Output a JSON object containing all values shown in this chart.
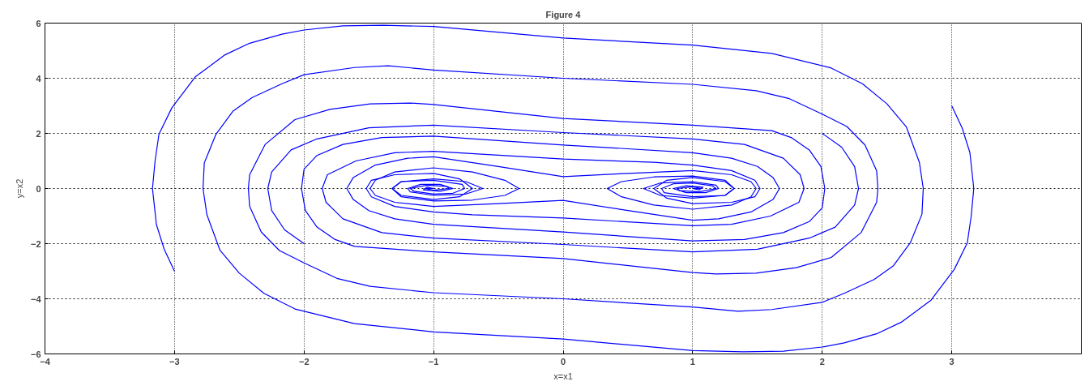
{
  "chart_data": {
    "type": "line",
    "title": "Figure 4",
    "xlabel": "x=x1",
    "ylabel": "y=x2",
    "xlim": [
      -4,
      4
    ],
    "ylim": [
      -6,
      6
    ],
    "xticks": [
      -4,
      -3,
      -2,
      -1,
      0,
      1,
      2,
      3,
      {
        "value": 4,
        "label": null
      }
    ],
    "yticks": [
      -6,
      -4,
      -2,
      0,
      2,
      4,
      6
    ],
    "grid": true,
    "line_style": "solid",
    "series": [
      {
        "color": "#0000ff",
        "x": [
          3.0,
          3.08,
          3.14,
          3.17,
          3.15,
          3.12,
          3.02,
          2.84,
          2.61,
          2.42,
          2.17,
          2.0,
          1.7,
          1.39,
          1.0,
          0,
          -1.0,
          -1.61,
          -2.07,
          -2.31,
          -2.5,
          -2.65,
          -2.75,
          -2.78,
          -2.77,
          -2.68,
          -2.55,
          -2.4,
          -2.17,
          -2.0,
          -1.61,
          -1.35,
          -1.0,
          0,
          1.0,
          1.49,
          1.74,
          2.0,
          2.19,
          2.33,
          2.42,
          2.43,
          2.42,
          2.3,
          2.07,
          1.8,
          1.49,
          1.18,
          1.0,
          0,
          -1.0,
          -1.61,
          -1.76,
          -1.9,
          -1.99,
          -2.02,
          -2.0,
          -1.9,
          -1.7,
          -1.4,
          -1.0,
          0,
          1.0,
          1.3,
          1.5,
          1.62,
          1.67,
          1.62,
          1.45,
          1.2,
          1.0,
          0.5,
          0,
          -0.5,
          -1.0,
          -1.3,
          -1.45,
          -1.49,
          -1.45,
          -1.3,
          -1.0,
          -0.7,
          -0.45,
          -0.34,
          -0.45,
          -0.7,
          -1.0,
          -1.25,
          -1.32,
          -1.25,
          -1.0,
          -0.75,
          -0.62,
          -0.75,
          -1.0,
          -1.18,
          -1.2,
          -1.1,
          -0.95,
          -0.85,
          -0.95,
          -1.08,
          -1.05,
          -1.0
        ],
        "values": [
          3.0,
          2.2,
          1.3,
          0,
          -1.0,
          -1.97,
          -2.93,
          -4.05,
          -4.85,
          -5.27,
          -5.6,
          -5.75,
          -5.9,
          -5.92,
          -5.88,
          -5.46,
          -5.2,
          -4.9,
          -4.37,
          -3.8,
          -3.07,
          -2.23,
          -0.95,
          0,
          0.93,
          1.97,
          2.8,
          3.3,
          3.8,
          4.13,
          4.39,
          4.45,
          4.3,
          4.0,
          3.78,
          3.55,
          3.27,
          2.7,
          2.25,
          1.58,
          0.65,
          0,
          -0.5,
          -1.6,
          -2.5,
          -2.87,
          -3.07,
          -3.1,
          -3.05,
          -2.54,
          -2.3,
          -2.1,
          -1.85,
          -1.4,
          -0.8,
          0,
          0.7,
          1.2,
          1.6,
          1.85,
          1.9,
          1.58,
          1.3,
          1.1,
          0.8,
          0.4,
          0,
          -0.4,
          -0.85,
          -1.1,
          -1.15,
          -0.8,
          -0.43,
          -0.55,
          -0.65,
          -0.5,
          -0.25,
          0,
          0.3,
          0.6,
          0.75,
          0.6,
          0.3,
          0,
          -0.25,
          -0.42,
          -0.45,
          -0.3,
          0,
          0.25,
          0.35,
          0.25,
          0,
          -0.2,
          -0.25,
          -0.12,
          0,
          0.15,
          0.15,
          0,
          -0.1,
          -0.05,
          0.05,
          0
        ]
      },
      {
        "color": "#0000ff",
        "x": [
          -3.0,
          -3.08,
          -3.14,
          -3.17,
          -3.15,
          -3.12,
          -3.02,
          -2.84,
          -2.61,
          -2.42,
          -2.17,
          -2.0,
          -1.7,
          -1.39,
          -1.0,
          0,
          1.0,
          1.61,
          2.07,
          2.31,
          2.5,
          2.65,
          2.75,
          2.78,
          2.77,
          2.68,
          2.55,
          2.4,
          2.17,
          2.0,
          1.61,
          1.35,
          1.0,
          0,
          -1.0,
          -1.49,
          -1.74,
          -2.0,
          -2.19,
          -2.33,
          -2.42,
          -2.43,
          -2.42,
          -2.3,
          -2.07,
          -1.8,
          -1.49,
          -1.18,
          -1.0,
          0,
          1.0,
          1.61,
          1.76,
          1.9,
          1.99,
          2.02,
          2.0,
          1.9,
          1.7,
          1.4,
          1.0,
          0,
          -1.0,
          -1.3,
          -1.5,
          -1.62,
          -1.67,
          -1.62,
          -1.45,
          -1.2,
          -1.0,
          -0.5,
          0,
          0.5,
          1.0,
          1.3,
          1.45,
          1.49,
          1.45,
          1.3,
          1.0,
          0.7,
          0.45,
          0.34,
          0.45,
          0.7,
          1.0,
          1.25,
          1.32,
          1.25,
          1.0,
          0.75,
          0.62,
          0.75,
          1.0,
          1.18,
          1.2,
          1.1,
          0.95,
          0.85,
          0.95,
          1.08,
          1.05,
          1.0
        ],
        "values": [
          -3.0,
          -2.2,
          -1.3,
          0,
          1.0,
          1.97,
          2.93,
          4.05,
          4.85,
          5.27,
          5.6,
          5.75,
          5.9,
          5.92,
          5.88,
          5.46,
          5.2,
          4.9,
          4.37,
          3.8,
          3.07,
          2.23,
          0.95,
          0,
          -0.93,
          -1.97,
          -2.8,
          -3.3,
          -3.8,
          -4.13,
          -4.39,
          -4.45,
          -4.3,
          -4.0,
          -3.78,
          -3.55,
          -3.27,
          -2.7,
          -2.25,
          -1.58,
          -0.65,
          0,
          0.5,
          1.6,
          2.5,
          2.87,
          3.07,
          3.1,
          3.05,
          2.54,
          2.3,
          2.1,
          1.85,
          1.4,
          0.8,
          0,
          -0.7,
          -1.2,
          -1.6,
          -1.85,
          -1.9,
          -1.58,
          -1.3,
          -1.1,
          -0.8,
          -0.4,
          0,
          0.4,
          0.85,
          1.1,
          1.15,
          0.8,
          0.43,
          0.55,
          0.65,
          0.5,
          0.25,
          0,
          -0.3,
          -0.6,
          -0.75,
          -0.6,
          -0.3,
          0,
          0.25,
          0.42,
          0.45,
          0.3,
          0,
          -0.25,
          -0.35,
          -0.25,
          0,
          0.2,
          0.25,
          0.12,
          0,
          -0.15,
          -0.15,
          0,
          0.1,
          0.05,
          -0.05,
          0
        ]
      },
      {
        "color": "#0000ff",
        "x": [
          2.0,
          2.15,
          2.25,
          2.28,
          2.25,
          2.1,
          1.9,
          1.5,
          1.0,
          0,
          -1.0,
          -1.4,
          -1.7,
          -1.83,
          -1.86,
          -1.82,
          -1.6,
          -1.3,
          -1.0,
          0,
          0.7,
          1.0,
          1.3,
          1.48,
          1.52,
          1.48,
          1.3,
          1.0,
          0.8,
          0.7,
          0.8,
          1.0,
          1.25,
          1.32,
          1.25,
          1.0,
          0.78,
          0.76,
          0.85,
          1.0,
          1.15,
          1.18,
          1.05,
          0.9,
          0.88,
          1.0,
          1.07,
          1.0
        ],
        "values": [
          2.0,
          1.5,
          0.8,
          0,
          -0.6,
          -1.4,
          -1.8,
          -2.2,
          -2.3,
          -2.03,
          -1.8,
          -1.6,
          -1.1,
          -0.5,
          0,
          0.5,
          1.0,
          1.3,
          1.35,
          1.07,
          0.95,
          0.85,
          0.65,
          0.3,
          0,
          -0.3,
          -0.5,
          -0.55,
          -0.35,
          0,
          0.3,
          0.4,
          0.25,
          0,
          -0.25,
          -0.3,
          -0.15,
          0,
          0.17,
          0.2,
          0.1,
          0,
          -0.12,
          -0.08,
          0,
          0.06,
          0,
          0
        ]
      },
      {
        "color": "#0000ff",
        "x": [
          -2.0,
          -2.15,
          -2.25,
          -2.28,
          -2.25,
          -2.1,
          -1.9,
          -1.5,
          -1.0,
          0,
          1.0,
          1.4,
          1.7,
          1.83,
          1.86,
          1.82,
          1.6,
          1.3,
          1.0,
          0,
          -0.7,
          -1.0,
          -1.3,
          -1.48,
          -1.52,
          -1.48,
          -1.3,
          -1.0,
          -0.8,
          -0.7,
          -0.8,
          -1.0,
          -1.25,
          -1.32,
          -1.25,
          -1.0,
          -0.78,
          -0.76,
          -0.85,
          -1.0,
          -1.15,
          -1.18,
          -1.05,
          -0.9,
          -0.88,
          -1.0,
          -1.07,
          -1.0
        ],
        "values": [
          -2.0,
          -1.5,
          -0.8,
          0,
          0.6,
          1.4,
          1.8,
          2.2,
          2.3,
          2.03,
          1.8,
          1.6,
          1.1,
          0.5,
          0,
          -0.5,
          -1.0,
          -1.3,
          -1.35,
          -1.07,
          -0.95,
          -0.85,
          -0.65,
          -0.3,
          0,
          0.3,
          0.5,
          0.55,
          0.35,
          0,
          -0.3,
          -0.4,
          -0.25,
          0,
          0.25,
          0.3,
          0.15,
          0,
          -0.17,
          -0.2,
          -0.1,
          0,
          0.12,
          0.08,
          0,
          -0.06,
          0,
          0
        ]
      }
    ]
  }
}
